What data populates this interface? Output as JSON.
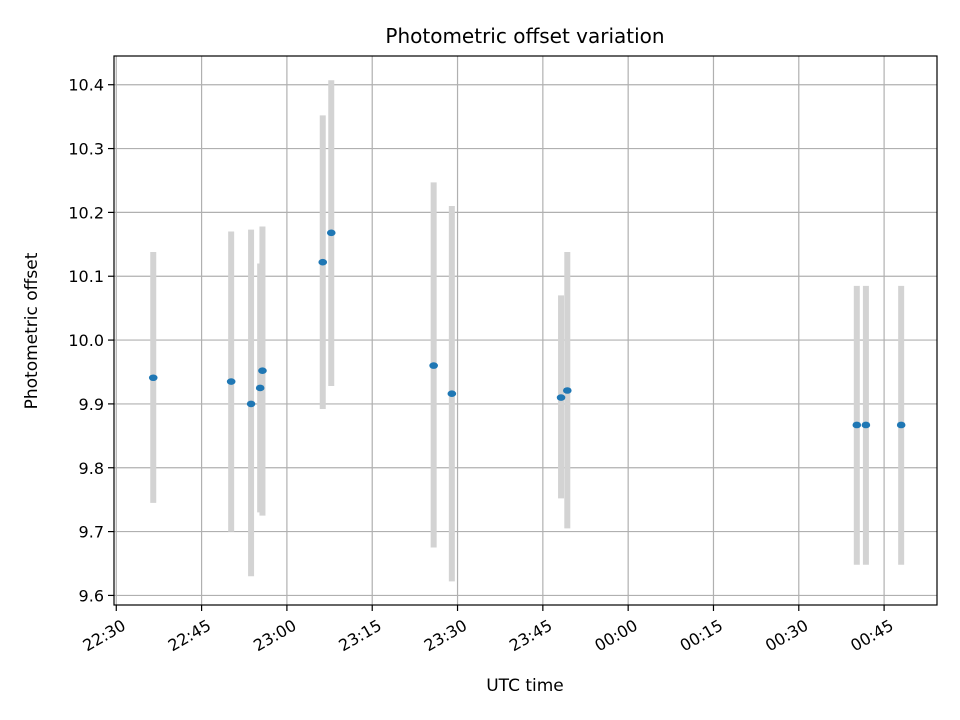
{
  "chart_data": {
    "type": "scatter",
    "title": "Photometric offset variation",
    "xlabel": "UTC time",
    "ylabel": "Photometric offset",
    "grid": true,
    "x_tick_labels": [
      "22:30",
      "22:45",
      "23:00",
      "23:15",
      "23:30",
      "23:45",
      "00:00",
      "00:15",
      "00:30",
      "00:45"
    ],
    "x_tick_minutes": [
      -90,
      -75,
      -60,
      -45,
      -30,
      -15,
      0,
      15,
      30,
      45
    ],
    "xlim_minutes": [
      -90.4,
      54.3
    ],
    "y_ticks": [
      9.6,
      9.7,
      9.8,
      9.9,
      10.0,
      10.1,
      10.2,
      10.3,
      10.4
    ],
    "ylim": [
      9.585,
      10.445
    ],
    "colors": {
      "points": "#1f77b4",
      "errorbars": "#d3d3d3",
      "grid": "#b0b0b0"
    },
    "series": [
      {
        "points": [
          {
            "time": "22:36:30",
            "t": -83.5,
            "y": 9.941,
            "ylow": 9.745,
            "yhigh": 10.138
          },
          {
            "time": "22:50:10",
            "t": -69.8,
            "y": 9.935,
            "ylow": 9.7,
            "yhigh": 10.17
          },
          {
            "time": "22:53:40",
            "t": -66.3,
            "y": 9.9,
            "ylow": 9.63,
            "yhigh": 10.173
          },
          {
            "time": "22:55:20",
            "t": -64.7,
            "y": 9.925,
            "ylow": 9.73,
            "yhigh": 10.12
          },
          {
            "time": "22:55:40",
            "t": -64.3,
            "y": 9.952,
            "ylow": 9.725,
            "yhigh": 10.178
          },
          {
            "time": "23:06:20",
            "t": -53.7,
            "y": 10.122,
            "ylow": 9.892,
            "yhigh": 10.352
          },
          {
            "time": "23:07:50",
            "t": -52.2,
            "y": 10.168,
            "ylow": 9.928,
            "yhigh": 10.407
          },
          {
            "time": "23:25:50",
            "t": -34.2,
            "y": 9.96,
            "ylow": 9.675,
            "yhigh": 10.247
          },
          {
            "time": "23:29:00",
            "t": -31.0,
            "y": 9.916,
            "ylow": 9.622,
            "yhigh": 10.21
          },
          {
            "time": "23:48:10",
            "t": -11.8,
            "y": 9.91,
            "ylow": 9.752,
            "yhigh": 10.07
          },
          {
            "time": "23:49:20",
            "t": -10.7,
            "y": 9.921,
            "ylow": 9.705,
            "yhigh": 10.138
          },
          {
            "time": "00:40:10",
            "t": 40.2,
            "y": 9.867,
            "ylow": 9.648,
            "yhigh": 10.085
          },
          {
            "time": "00:41:50",
            "t": 41.8,
            "y": 9.867,
            "ylow": 9.648,
            "yhigh": 10.085
          },
          {
            "time": "00:48:00",
            "t": 48.0,
            "y": 9.867,
            "ylow": 9.648,
            "yhigh": 10.085
          }
        ]
      }
    ]
  }
}
